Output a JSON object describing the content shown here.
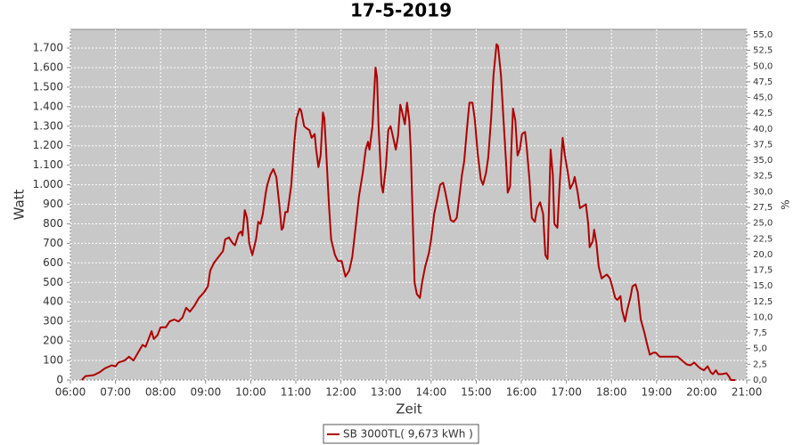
{
  "chart_data": {
    "type": "line",
    "title": "17-5-2019",
    "x_label": "Zeit",
    "y_label": "Watt",
    "y2_label": "%",
    "x": [
      375,
      380,
      391,
      399,
      406,
      415,
      420,
      424,
      432,
      438,
      444,
      450,
      456,
      460,
      463,
      468,
      471,
      476,
      480,
      487,
      492,
      498,
      504,
      509,
      514,
      519,
      525,
      531,
      538,
      543,
      546,
      551,
      557,
      563,
      566,
      571,
      576,
      579,
      584,
      587,
      589,
      592,
      595,
      598,
      602,
      607,
      610,
      613,
      616,
      620,
      622,
      626,
      630,
      634,
      638,
      641,
      643,
      646,
      649,
      654,
      658,
      661,
      665,
      667,
      671,
      674,
      678,
      681,
      685,
      687,
      690,
      693,
      696,
      698,
      700,
      704,
      707,
      712,
      716,
      721,
      724,
      726,
      731,
      735,
      740,
      744,
      749,
      753,
      756,
      758,
      762,
      766,
      768,
      770,
      774,
      776,
      780,
      783,
      786,
      789,
      793,
      796,
      799,
      801,
      805,
      808,
      811,
      813,
      815,
      818,
      821,
      825,
      828,
      832,
      837,
      840,
      844,
      849,
      852,
      856,
      859,
      863,
      866,
      870,
      874,
      877,
      881,
      884,
      888,
      891,
      895,
      898,
      902,
      906,
      909,
      913,
      916,
      920,
      923,
      927,
      929,
      933,
      936,
      940,
      942,
      945,
      947,
      949,
      952,
      955,
      958,
      961,
      965,
      967,
      971,
      974,
      978,
      981,
      985,
      989,
      992,
      995,
      997,
      999,
      1002,
      1004,
      1008,
      1011,
      1015,
      1018,
      1022,
      1025,
      1029,
      1031,
      1035,
      1038,
      1042,
      1046,
      1049,
      1051,
      1055,
      1057,
      1060,
      1063,
      1067,
      1070,
      1074,
      1078,
      1081,
      1085,
      1088,
      1092,
      1094,
      1098,
      1101,
      1105,
      1108,
      1112,
      1115,
      1119,
      1124,
      1127,
      1131,
      1136,
      1139,
      1144,
      1150,
      1162,
      1168,
      1174,
      1180,
      1185,
      1190,
      1195,
      1198,
      1203,
      1208,
      1212,
      1215,
      1219,
      1222,
      1227,
      1233,
      1236,
      1239,
      1245
    ],
    "series": [
      {
        "name": "SB 3000TL( 9,673 kWh )",
        "color": "#b00000",
        "values": [
          0,
          20,
          25,
          40,
          60,
          75,
          70,
          90,
          100,
          120,
          100,
          140,
          180,
          170,
          200,
          250,
          210,
          230,
          270,
          270,
          300,
          310,
          300,
          320,
          370,
          350,
          380,
          420,
          450,
          480,
          560,
          600,
          630,
          660,
          720,
          730,
          700,
          690,
          750,
          760,
          740,
          870,
          830,
          700,
          640,
          720,
          810,
          800,
          850,
          960,
          1000,
          1050,
          1080,
          1040,
          900,
          770,
          780,
          860,
          860,
          1000,
          1220,
          1340,
          1390,
          1380,
          1300,
          1290,
          1280,
          1240,
          1260,
          1180,
          1090,
          1150,
          1370,
          1340,
          1200,
          900,
          720,
          640,
          610,
          610,
          560,
          530,
          560,
          630,
          800,
          940,
          1060,
          1180,
          1220,
          1180,
          1300,
          1600,
          1550,
          1300,
          1000,
          960,
          1100,
          1280,
          1300,
          1250,
          1180,
          1250,
          1410,
          1380,
          1310,
          1420,
          1330,
          1170,
          900,
          500,
          440,
          420,
          500,
          580,
          650,
          720,
          850,
          940,
          1000,
          1010,
          960,
          880,
          820,
          810,
          830,
          920,
          1050,
          1120,
          1300,
          1420,
          1420,
          1340,
          1160,
          1030,
          1000,
          1060,
          1140,
          1350,
          1560,
          1720,
          1710,
          1560,
          1350,
          1100,
          960,
          990,
          1200,
          1390,
          1330,
          1150,
          1180,
          1260,
          1270,
          1200,
          1020,
          830,
          810,
          880,
          910,
          850,
          640,
          620,
          900,
          1180,
          1050,
          800,
          780,
          1000,
          1240,
          1150,
          1060,
          980,
          1010,
          1040,
          960,
          880,
          890,
          900,
          800,
          680,
          710,
          770,
          700,
          580,
          520,
          530,
          540,
          520,
          480,
          420,
          410,
          430,
          360,
          300,
          360,
          420,
          480,
          490,
          450,
          310,
          240,
          190,
          130,
          140,
          140,
          120,
          120,
          120,
          120,
          100,
          80,
          75,
          90,
          70,
          60,
          50,
          70,
          40,
          30,
          50,
          30,
          30,
          35,
          20,
          0,
          0
        ]
      }
    ],
    "xlim": [
      360,
      1260
    ],
    "xticks": [
      {
        "value": 360,
        "label": "06:00"
      },
      {
        "value": 420,
        "label": "07:00"
      },
      {
        "value": 480,
        "label": "08:00"
      },
      {
        "value": 540,
        "label": "09:00"
      },
      {
        "value": 600,
        "label": "10:00"
      },
      {
        "value": 660,
        "label": "11:00"
      },
      {
        "value": 720,
        "label": "12:00"
      },
      {
        "value": 780,
        "label": "13:00"
      },
      {
        "value": 840,
        "label": "14:00"
      },
      {
        "value": 900,
        "label": "15:00"
      },
      {
        "value": 960,
        "label": "16:00"
      },
      {
        "value": 1020,
        "label": "17:00"
      },
      {
        "value": 1080,
        "label": "18:00"
      },
      {
        "value": 1140,
        "label": "19:00"
      },
      {
        "value": 1200,
        "label": "20:00"
      },
      {
        "value": 1260,
        "label": "21:00"
      }
    ],
    "ylim": [
      0,
      1795.7
    ],
    "yticks": [
      0,
      100,
      200,
      300,
      400,
      500,
      600,
      700,
      800,
      900,
      {
        "value": 1000,
        "label": "1.000"
      },
      {
        "value": 1100,
        "label": "1.100"
      },
      {
        "value": 1200,
        "label": "1.200"
      },
      {
        "value": 1300,
        "label": "1.300"
      },
      {
        "value": 1400,
        "label": "1.400"
      },
      {
        "value": 1500,
        "label": "1.500"
      },
      {
        "value": 1600,
        "label": "1.600"
      },
      {
        "value": 1700,
        "label": "1.700"
      }
    ],
    "y2lim": [
      0,
      55.85
    ],
    "y2ticks": [
      {
        "value": 0,
        "label": "0,0"
      },
      {
        "value": 2.5,
        "label": "2,5"
      },
      {
        "value": 5,
        "label": "5,0"
      },
      {
        "value": 7.5,
        "label": "7,5"
      },
      {
        "value": 10,
        "label": "10,0"
      },
      {
        "value": 12.5,
        "label": "12,5"
      },
      {
        "value": 15,
        "label": "15,0"
      },
      {
        "value": 17.5,
        "label": "17,5"
      },
      {
        "value": 20,
        "label": "20,0"
      },
      {
        "value": 22.5,
        "label": "22,5"
      },
      {
        "value": 25,
        "label": "25,0"
      },
      {
        "value": 27.5,
        "label": "27,5"
      },
      {
        "value": 30,
        "label": "30,0"
      },
      {
        "value": 32.5,
        "label": "32,5"
      },
      {
        "value": 35,
        "label": "35,0"
      },
      {
        "value": 37.5,
        "label": "37,5"
      },
      {
        "value": 40,
        "label": "40,0"
      },
      {
        "value": 42.5,
        "label": "42,5"
      },
      {
        "value": 45,
        "label": "45,0"
      },
      {
        "value": 47.5,
        "label": "47,5"
      },
      {
        "value": 50,
        "label": "50,0"
      },
      {
        "value": 52.5,
        "label": "52,5"
      },
      {
        "value": 55,
        "label": "55,0"
      }
    ],
    "grid": true,
    "legend": "bottom"
  }
}
